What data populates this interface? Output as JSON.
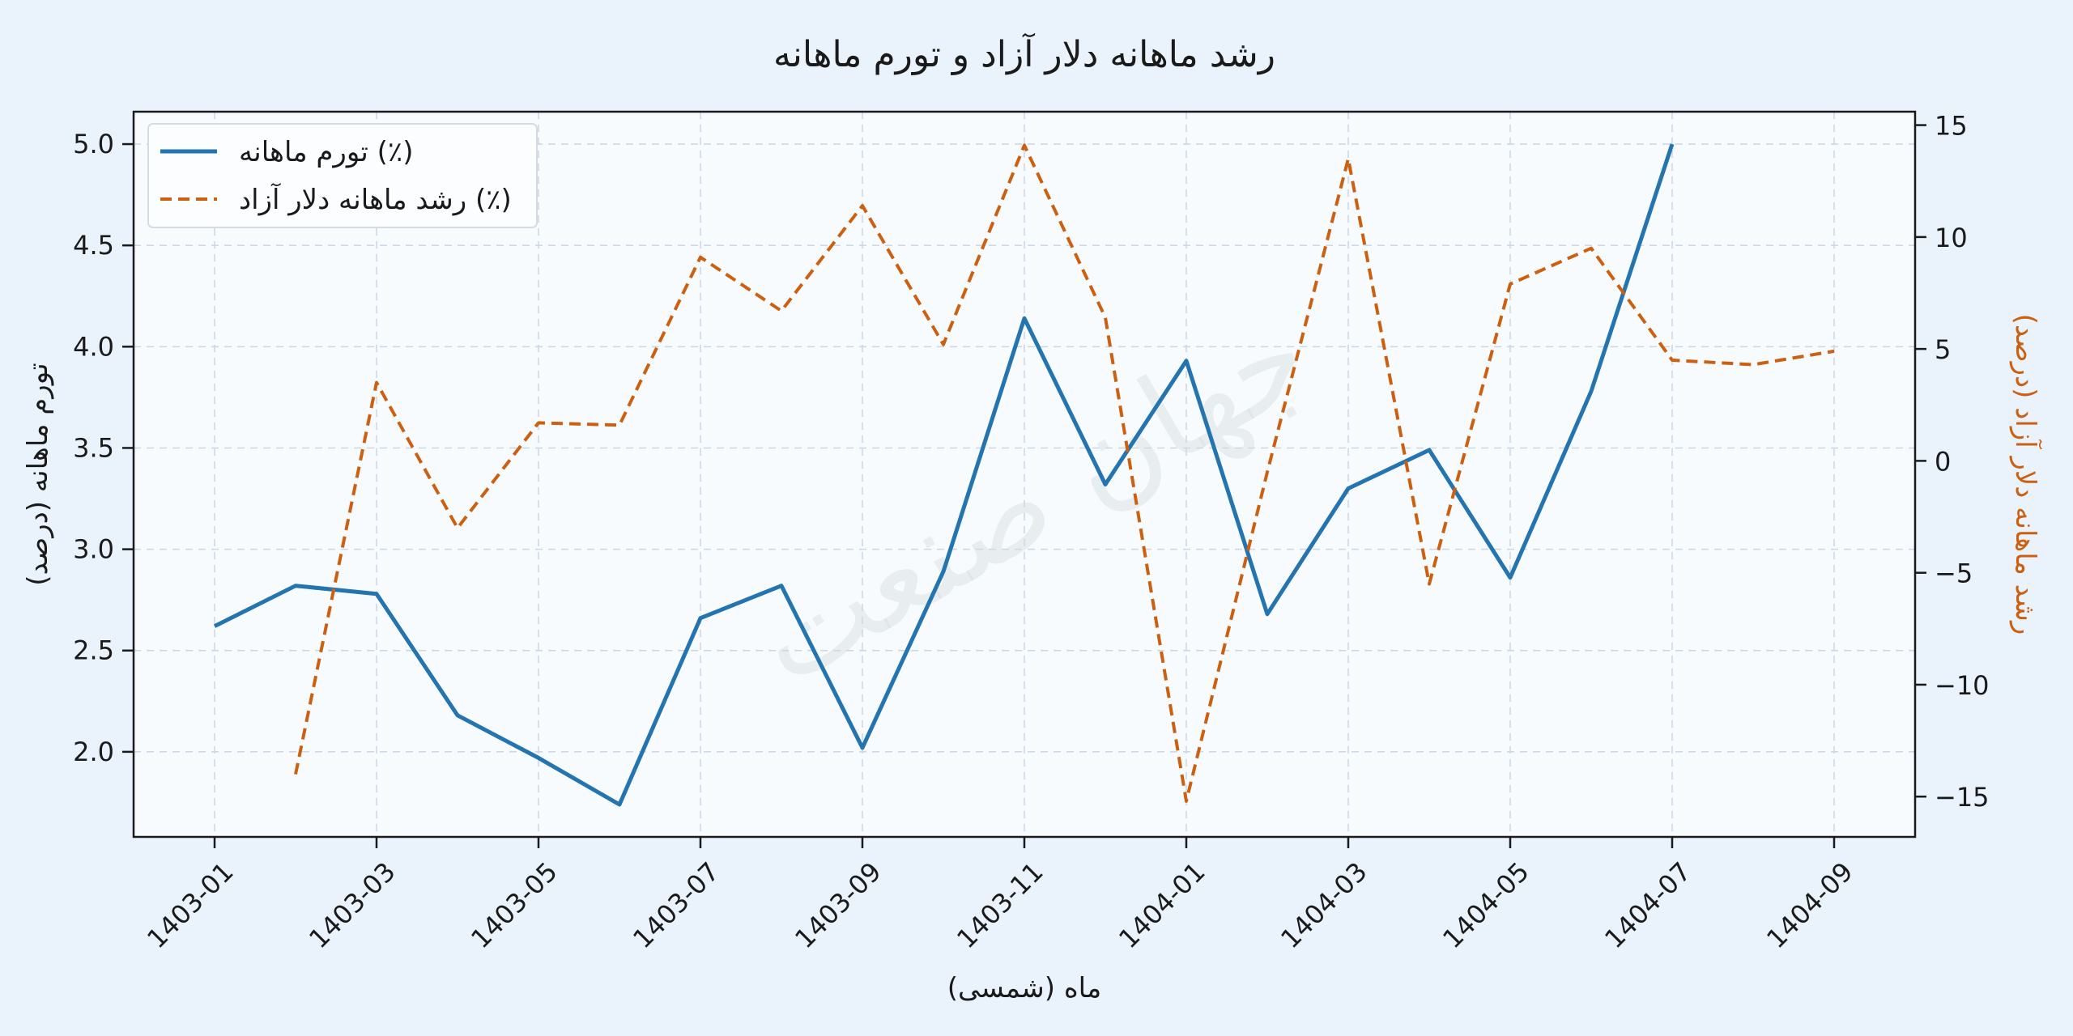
{
  "chart_data": {
    "type": "line",
    "title": "رشد ماهانه دلار آزاد و تورم ماهانه",
    "xlabel": "ماه (شمسی)",
    "ylabel_left": "تورم ماهانه (درصد)",
    "ylabel_right": "رشد ماهانه دلار آزاد (درصد)",
    "watermark": "جهان صنعت",
    "months": [
      "1403-01",
      "1403-02",
      "1403-03",
      "1403-04",
      "1403-05",
      "1403-06",
      "1403-07",
      "1403-08",
      "1403-09",
      "1403-10",
      "1403-11",
      "1403-12",
      "1404-01",
      "1404-02",
      "1404-03",
      "1404-04",
      "1404-05",
      "1404-06",
      "1404-07",
      "1404-08",
      "1404-09"
    ],
    "x_ticks": [
      "1403-01",
      "1403-03",
      "1403-05",
      "1403-07",
      "1403-09",
      "1403-11",
      "1404-01",
      "1404-03",
      "1404-05",
      "1404-07",
      "1404-09"
    ],
    "ylim_left": [
      1.58,
      5.16
    ],
    "ylim_right": [
      -16.8,
      15.6
    ],
    "yticks_left": [
      2.0,
      2.5,
      3.0,
      3.5,
      4.0,
      4.5,
      5.0
    ],
    "yticks_right": [
      -15,
      -10,
      -5,
      0,
      5,
      10,
      15
    ],
    "grid": true,
    "legend_position": "top-left",
    "series": [
      {
        "name": "تورم ماهانه (٪)",
        "axis": "left",
        "style": "solid",
        "color": "#2474b0",
        "values": [
          2.62,
          2.82,
          2.78,
          2.18,
          1.97,
          1.74,
          2.66,
          2.82,
          2.02,
          2.89,
          4.14,
          3.32,
          3.93,
          2.68,
          3.3,
          3.49,
          2.86,
          3.78,
          5.0,
          null,
          null
        ]
      },
      {
        "name": "رشد ماهانه دلار آزاد (٪)",
        "axis": "right",
        "style": "dashed",
        "color": "#cc6010",
        "values": [
          null,
          -14.0,
          3.5,
          -3.0,
          1.7,
          1.6,
          9.1,
          6.7,
          11.4,
          5.2,
          14.1,
          6.4,
          -15.2,
          -0.5,
          13.5,
          -5.5,
          7.9,
          9.5,
          4.5,
          4.3,
          4.9
        ]
      }
    ]
  }
}
